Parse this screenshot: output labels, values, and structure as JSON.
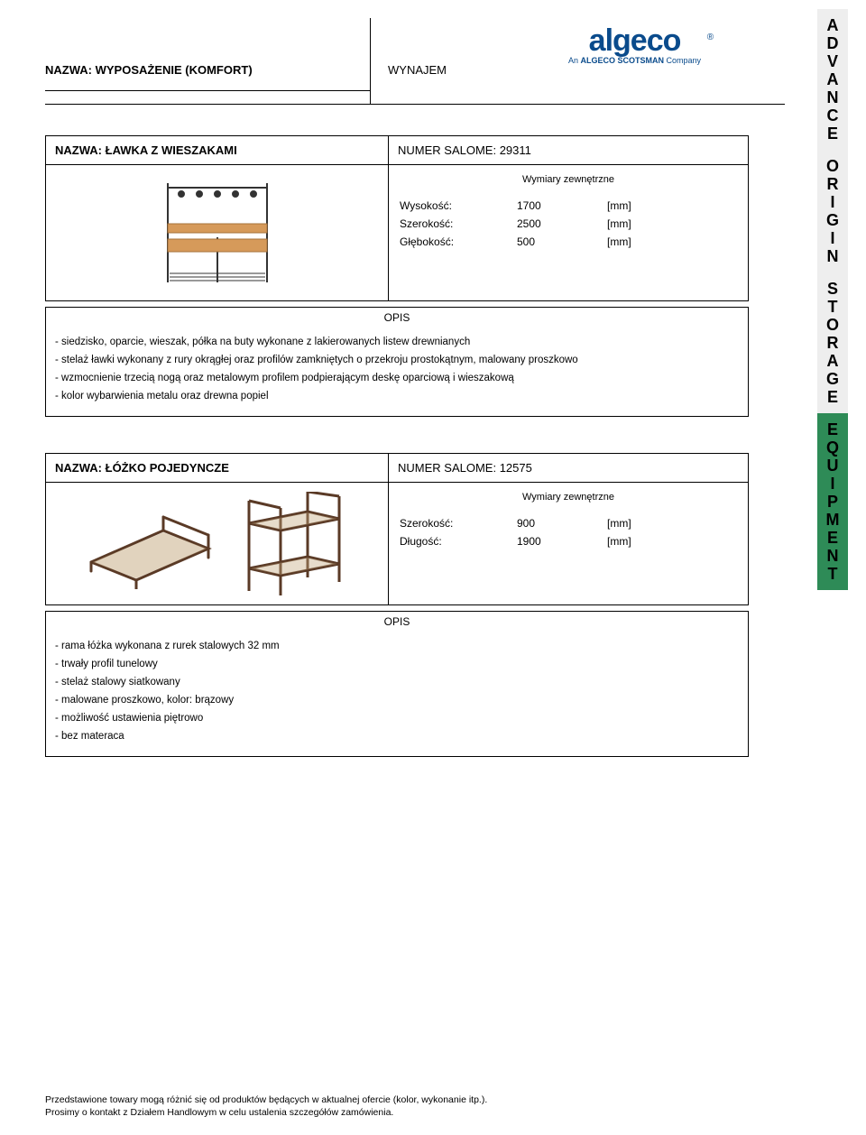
{
  "header": {
    "title": "NAZWA: WYPOSAŻENIE (KOMFORT)",
    "sub": "WYNAJEM"
  },
  "logo": {
    "text": "algeco",
    "tagline_pre": "An ",
    "tagline_strong": "ALGECO SCOTSMAN",
    "tagline_post": " Company",
    "reg": "®",
    "color": "#0a4b8c"
  },
  "sidebar": {
    "words": [
      "ADVANCE",
      "ORIGIN",
      "STORAGE",
      "EQUIPMENT"
    ],
    "bg_normal": "#eeeeee",
    "bg_active": "#2e8b57",
    "active_index": 3,
    "fontsize": 18
  },
  "products": [
    {
      "title_label": "NAZWA:",
      "title": "ŁAWKA Z WIESZAKAMI",
      "num_label": "NUMER SALOME:",
      "num": "29311",
      "dim_head": "Wymiary zewnętrzne",
      "dims": [
        {
          "label": "Wysokość:",
          "value": "1700",
          "unit": "[mm]"
        },
        {
          "label": "Szerokość:",
          "value": "2500",
          "unit": "[mm]"
        },
        {
          "label": "Głębokość:",
          "value": "500",
          "unit": "[mm]"
        }
      ],
      "opis_head": "OPIS",
      "opis": [
        "- siedzisko, oparcie, wieszak, półka na buty wykonane z lakierowanych listew drewnianych",
        "- stelaż ławki wykonany z rury okrągłej oraz profilów zamkniętych o przekroju prostokątnym, malowany proszkowo",
        "- wzmocnienie trzecią nogą oraz metalowym profilem podpierającym deskę oparciową i wieszakową",
        "- kolor wybarwienia metalu oraz drewna popiel"
      ]
    },
    {
      "title_label": "NAZWA:",
      "title": "ŁÓŻKO POJEDYNCZE",
      "num_label": "NUMER SALOME:",
      "num": "12575",
      "dim_head": "Wymiary zewnętrzne",
      "dims": [
        {
          "label": "Szerokość:",
          "value": "900",
          "unit": "[mm]"
        },
        {
          "label": "Długość:",
          "value": "1900",
          "unit": "[mm]"
        }
      ],
      "opis_head": "OPIS",
      "opis": [
        "- rama łóżka wykonana z rurek stalowych 32 mm",
        "- trwały profil tunelowy",
        "- stelaż stalowy siatkowany",
        "- malowane proszkowo, kolor: brązowy",
        "- możliwość ustawienia piętrowo",
        "- bez materaca"
      ]
    }
  ],
  "footer": {
    "line1": "Przedstawione towary mogą różnić się od produktów będących w aktualnej ofercie (kolor, wykonanie itp.).",
    "line2": "Prosimy o kontakt z Działem Handlowym w celu ustalenia szczegółów zamówienia."
  },
  "style": {
    "border_color": "#000000",
    "font": "Arial",
    "body_width": 960,
    "body_height": 1258,
    "label_fontsize": 12,
    "title_fontsize": 13,
    "wood_color": "#d69a5a",
    "metal_color": "#333333",
    "bed_color": "#5a3a26"
  }
}
